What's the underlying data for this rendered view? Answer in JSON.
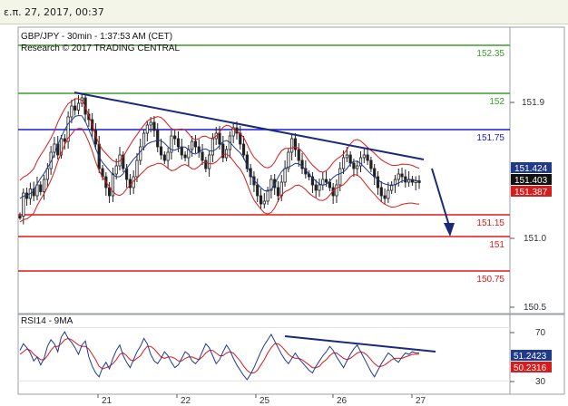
{
  "header": {
    "datetime": "ε.π. 27, 2017, 00:37"
  },
  "chart_data": {
    "type": "line",
    "instrument": "GBP/JPY - 30min - 1:37:53 AM (CET)",
    "copyright": "Research © 2017 TRADING CENTRAL",
    "x_labels": [
      "21",
      "22",
      "25",
      "26",
      "27"
    ],
    "price_axis": {
      "ylim": [
        150.5,
        152.35
      ],
      "ticks": [
        "151.9",
        "151.0",
        "150.5"
      ]
    },
    "levels": [
      {
        "label": "152.35",
        "value": 152.35,
        "color": "#3a9e2a"
      },
      {
        "label": "152",
        "value": 152.0,
        "color": "#3a9e2a"
      },
      {
        "label": "151.75",
        "value": 151.75,
        "color": "#1a1adc"
      },
      {
        "label": "151.15",
        "value": 151.15,
        "color": "#e01818"
      },
      {
        "label": "151",
        "value": 151.0,
        "color": "#e01818"
      },
      {
        "label": "150.75",
        "value": 150.75,
        "color": "#e01818"
      }
    ],
    "price_tags": [
      {
        "label": "151.424",
        "value": 151.424,
        "color": "#1f3a8a"
      },
      {
        "label": "151.403",
        "value": 151.403,
        "color": "#111111"
      },
      {
        "label": "151.387",
        "value": 151.387,
        "color": "#d81b1b"
      }
    ],
    "rsi": {
      "title": "RSI14 - 9MA",
      "ticks": [
        "70",
        "30"
      ],
      "ylim": [
        20,
        80
      ],
      "tags": [
        {
          "label": "51.2423",
          "value": 51.2423,
          "color": "#1f3a8a"
        },
        {
          "label": "50.2316",
          "value": 50.2316,
          "color": "#d81b1b"
        }
      ]
    },
    "price_series": [
      151.15,
      151.32,
      151.28,
      151.35,
      151.3,
      151.38,
      151.33,
      151.42,
      151.5,
      151.62,
      151.68,
      151.6,
      151.72,
      151.7,
      151.88,
      151.96,
      151.93,
      151.98,
      152.02,
      151.9,
      151.86,
      151.78,
      151.68,
      151.5,
      151.44,
      151.36,
      151.3,
      151.46,
      151.52,
      151.6,
      151.5,
      151.42,
      151.36,
      151.44,
      151.56,
      151.66,
      151.76,
      151.82,
      151.84,
      151.78,
      151.66,
      151.6,
      151.56,
      151.62,
      151.74,
      151.72,
      151.66,
      151.6,
      151.58,
      151.64,
      151.7,
      151.66,
      151.62,
      151.56,
      151.5,
      151.6,
      151.72,
      151.76,
      151.68,
      151.58,
      151.64,
      151.74,
      151.8,
      151.76,
      151.68,
      151.6,
      151.5,
      151.44,
      151.38,
      151.3,
      151.24,
      151.26,
      151.34,
      151.42,
      151.36,
      151.3,
      151.4,
      151.5,
      151.62,
      151.72,
      151.64,
      151.56,
      151.5,
      151.46,
      151.44,
      151.38,
      151.34,
      151.38,
      151.42,
      151.4,
      151.36,
      151.3,
      151.38,
      151.5,
      151.58,
      151.6,
      151.54,
      151.5,
      151.52,
      151.58,
      151.6,
      151.56,
      151.5,
      151.44,
      151.36,
      151.3,
      151.28,
      151.34,
      151.38,
      151.42,
      151.46,
      151.44,
      151.4,
      151.42,
      151.4,
      151.41,
      151.403
    ],
    "rsi_series": [
      53,
      58,
      55,
      51,
      45,
      48,
      42,
      47,
      56,
      61,
      58,
      52,
      63,
      67,
      62,
      59,
      55,
      50,
      57,
      60,
      48,
      41,
      36,
      33,
      40,
      44,
      39,
      47,
      53,
      57,
      49,
      44,
      40,
      46,
      52,
      56,
      62,
      58,
      50,
      45,
      43,
      47,
      52,
      49,
      44,
      40,
      42,
      47,
      52,
      50,
      45,
      43,
      46,
      52,
      58,
      55,
      49,
      43,
      46,
      52,
      57,
      53,
      47,
      42,
      38,
      34,
      31,
      35,
      40,
      46,
      52,
      57,
      61,
      65,
      60,
      55,
      50,
      46,
      43,
      47,
      51,
      47,
      44,
      41,
      38,
      36,
      41,
      45,
      49,
      52,
      56,
      53,
      48,
      44,
      40,
      45,
      50,
      54,
      57,
      52,
      47,
      42,
      37,
      33,
      38,
      43,
      47,
      51,
      49,
      46,
      44,
      48,
      51,
      50,
      52,
      51,
      51.24
    ],
    "rsi_ma_series": [
      50,
      52,
      54,
      53,
      50,
      48,
      46,
      46,
      49,
      53,
      56,
      56,
      58,
      61,
      62,
      61,
      59,
      57,
      56,
      56,
      54,
      50,
      46,
      41,
      39,
      40,
      41,
      43,
      46,
      50,
      51,
      49,
      46,
      45,
      47,
      49,
      53,
      56,
      56,
      54,
      51,
      48,
      47,
      48,
      48,
      47,
      45,
      45,
      47,
      48,
      48,
      47,
      46,
      48,
      51,
      53,
      53,
      51,
      49,
      49,
      51,
      52,
      51,
      48,
      45,
      41,
      38,
      36,
      36,
      38,
      42,
      46,
      51,
      55,
      58,
      58,
      56,
      53,
      50,
      48,
      47,
      47,
      46,
      44,
      42,
      40,
      40,
      41,
      44,
      46,
      49,
      51,
      51,
      49,
      47,
      46,
      47,
      49,
      51,
      52,
      51,
      49,
      46,
      43,
      41,
      41,
      42,
      44,
      46,
      47,
      47,
      47,
      48,
      49,
      50,
      50,
      50.23
    ]
  }
}
